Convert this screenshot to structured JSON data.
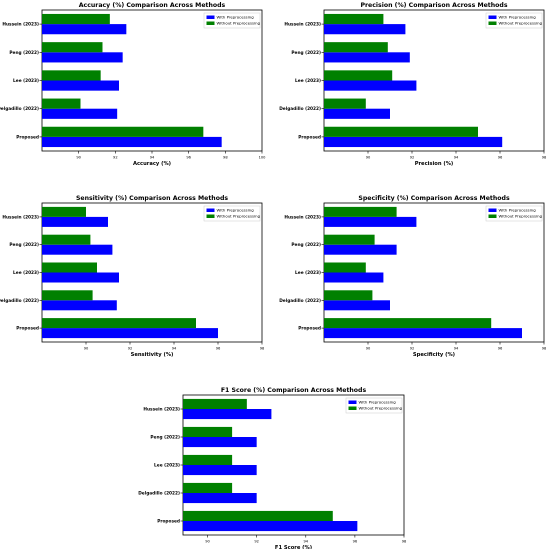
{
  "chart_data": [
    {
      "type": "bar",
      "orientation": "horizontal",
      "title": "Accuracy (%) Comparison Across Methods",
      "xlabel": "Accuracy (%)",
      "categories": [
        "Proposed",
        "Delgadillo (2022)",
        "Lee (2023)",
        "Peng (2022)",
        "Hussein (2023)"
      ],
      "xlim": [
        88,
        100
      ],
      "xticks": [
        90,
        92,
        94,
        96,
        98,
        100
      ],
      "legend": "top-right",
      "series": [
        {
          "name": "With Preprocessing",
          "color": "#0000ff",
          "values": [
            97.8,
            92.1,
            92.2,
            92.4,
            92.6
          ]
        },
        {
          "name": "Without Preprocessing",
          "color": "#008000",
          "values": [
            96.8,
            90.1,
            91.2,
            91.3,
            91.7
          ]
        }
      ]
    },
    {
      "type": "bar",
      "orientation": "horizontal",
      "title": "Precision (%) Comparison Across Methods",
      "xlabel": "Precision (%)",
      "categories": [
        "Proposed",
        "Delgadillo (2022)",
        "Lee (2023)",
        "Peng (2022)",
        "Hussein (2023)"
      ],
      "xlim": [
        88,
        98
      ],
      "xticks": [
        90,
        92,
        94,
        96,
        98
      ],
      "legend": "top-right",
      "series": [
        {
          "name": "With Preprocessing",
          "color": "#0000ff",
          "values": [
            96.1,
            91.0,
            92.2,
            91.9,
            91.7
          ]
        },
        {
          "name": "Without Preprocessing",
          "color": "#008000",
          "values": [
            95.0,
            89.9,
            91.1,
            90.9,
            90.7
          ]
        }
      ]
    },
    {
      "type": "bar",
      "orientation": "horizontal",
      "title": "Sensitivity (%) Comparison Across Methods",
      "xlabel": "Sensitivity (%)",
      "categories": [
        "Proposed",
        "Delgadillo (2022)",
        "Lee (2023)",
        "Peng (2022)",
        "Hussein (2023)"
      ],
      "xlim": [
        88,
        98
      ],
      "xticks": [
        90,
        92,
        94,
        96,
        98
      ],
      "legend": "top-right",
      "series": [
        {
          "name": "With Preprocessing",
          "color": "#0000ff",
          "values": [
            96.0,
            91.4,
            91.5,
            91.2,
            91.0
          ]
        },
        {
          "name": "Without Preprocessing",
          "color": "#008000",
          "values": [
            95.0,
            90.3,
            90.5,
            90.2,
            90.0
          ]
        }
      ]
    },
    {
      "type": "bar",
      "orientation": "horizontal",
      "title": "Specificity (%) Comparison Across Methods",
      "xlabel": "Specificity (%)",
      "categories": [
        "Proposed",
        "Delgadillo (2022)",
        "Lee (2023)",
        "Peng (2022)",
        "Hussein (2023)"
      ],
      "xlim": [
        88,
        98
      ],
      "xticks": [
        90,
        92,
        94,
        96,
        98
      ],
      "legend": "top-right",
      "series": [
        {
          "name": "With Preprocessing",
          "color": "#0000ff",
          "values": [
            97.0,
            91.0,
            90.7,
            91.3,
            92.2
          ]
        },
        {
          "name": "Without Preprocessing",
          "color": "#008000",
          "values": [
            95.6,
            90.2,
            89.9,
            90.3,
            91.3
          ]
        }
      ]
    },
    {
      "type": "bar",
      "orientation": "horizontal",
      "title": "F1 Score (%) Comparison Across Methods",
      "xlabel": "F1 Score (%)",
      "categories": [
        "Proposed",
        "Delgadillo (2022)",
        "Lee (2023)",
        "Peng (2022)",
        "Hussein (2023)"
      ],
      "xlim": [
        89,
        98
      ],
      "xticks": [
        90,
        92,
        94,
        96,
        98
      ],
      "legend": "top-right",
      "series": [
        {
          "name": "With Preprocessing",
          "color": "#0000ff",
          "values": [
            96.1,
            92.0,
            92.0,
            92.0,
            92.6
          ]
        },
        {
          "name": "Without Preprocessing",
          "color": "#008000",
          "values": [
            95.1,
            91.0,
            91.0,
            91.0,
            91.6
          ]
        }
      ]
    }
  ]
}
